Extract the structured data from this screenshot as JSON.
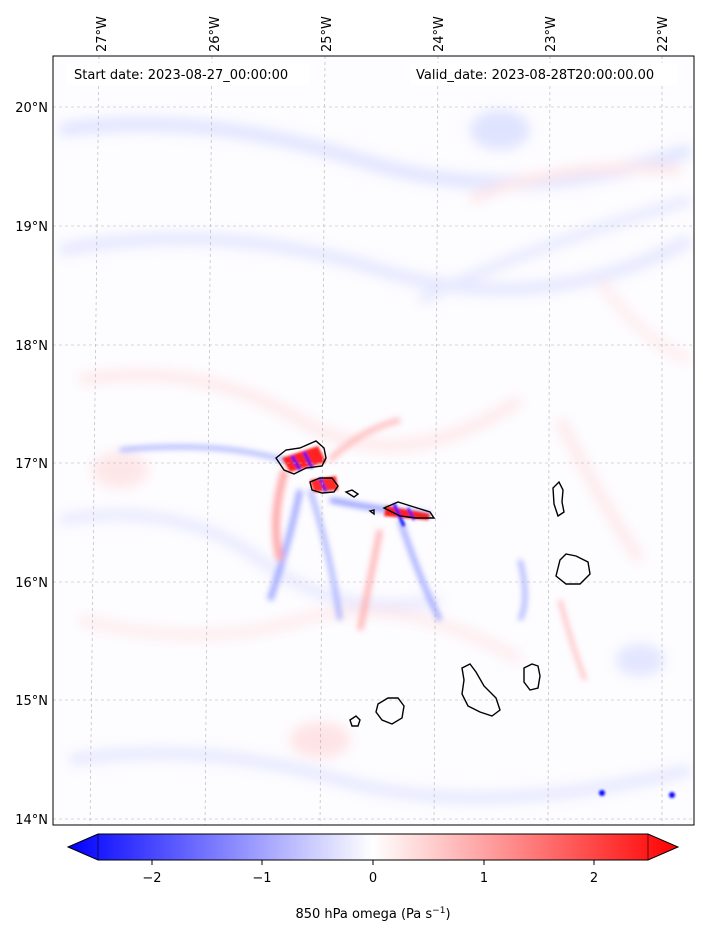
{
  "map": {
    "annotations": {
      "start_date": "Start date: 2023-08-27_00:00:00",
      "valid_date": "Valid_date: 2023-08-28T20:00:00.00"
    },
    "lon_ticks": [
      "27°W",
      "26°W",
      "25°W",
      "24°W",
      "23°W",
      "22°W"
    ],
    "lat_ticks": [
      "20°N",
      "19°N",
      "18°N",
      "17°N",
      "16°N",
      "15°N",
      "14°N"
    ],
    "colorbar": {
      "ticks": [
        "−2",
        "−1",
        "0",
        "1",
        "2"
      ],
      "label_main": "850 hPa omega (Pa s",
      "label_sup": "−1",
      "label_end": ")",
      "min_color": "#0000ff",
      "mid_color": "#ffffff",
      "max_color": "#ff0000"
    },
    "features": {
      "coastline_color": "#000000",
      "gridline_color": "#b0b0b0"
    }
  }
}
